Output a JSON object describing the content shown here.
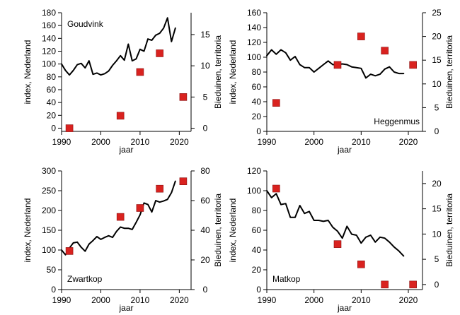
{
  "chart_data": [
    {
      "type": "line",
      "title": "Goudvink",
      "xlabel": "jaar",
      "ylabel": "index, Nederland",
      "y2label": "Bieduinen, territoria",
      "xlim": [
        1990,
        2023
      ],
      "ylim": [
        -5,
        180
      ],
      "y2lim": [
        -0.5,
        18.5
      ],
      "xticks": [
        1990,
        2000,
        2010,
        2020
      ],
      "yticks": [
        0,
        20,
        40,
        60,
        80,
        100,
        120,
        140,
        160,
        180
      ],
      "y2ticks": [
        0,
        5,
        10,
        15
      ],
      "label_position": "top-left",
      "series": [
        {
          "axis": "left",
          "style": "line",
          "color": "#000000",
          "x": [
            1990,
            1991,
            1992,
            1993,
            1994,
            1995,
            1996,
            1997,
            1998,
            1999,
            2000,
            2001,
            2002,
            2003,
            2004,
            2005,
            2006,
            2007,
            2008,
            2009,
            2010,
            2011,
            2012,
            2013,
            2014,
            2015,
            2016,
            2017,
            2018,
            2019
          ],
          "y": [
            100,
            90,
            83,
            90,
            99,
            101,
            94,
            105,
            84,
            86,
            83,
            85,
            89,
            98,
            105,
            113,
            106,
            131,
            105,
            108,
            123,
            120,
            139,
            137,
            145,
            148,
            156,
            172,
            135,
            156
          ]
        },
        {
          "axis": "right",
          "style": "marker",
          "color": "#d9221f",
          "x": [
            1992,
            2005,
            2010,
            2015,
            2021
          ],
          "y": [
            0,
            2,
            9,
            12,
            5
          ]
        }
      ]
    },
    {
      "type": "line",
      "title": "Heggenmus",
      "xlabel": "jaar",
      "ylabel": "index, Nederland",
      "y2label": "Bieduinen, territoria",
      "xlim": [
        1990,
        2023
      ],
      "ylim": [
        0,
        160
      ],
      "y2lim": [
        0,
        25
      ],
      "xticks": [
        1990,
        2000,
        2010,
        2020
      ],
      "yticks": [
        0,
        20,
        40,
        60,
        80,
        100,
        120,
        140,
        160
      ],
      "y2ticks": [
        0,
        5,
        10,
        15,
        20,
        25
      ],
      "label_position": "bottom-right",
      "series": [
        {
          "axis": "left",
          "style": "line",
          "color": "#000000",
          "x": [
            1990,
            1991,
            1992,
            1993,
            1994,
            1995,
            1996,
            1997,
            1998,
            1999,
            2000,
            2001,
            2002,
            2003,
            2004,
            2005,
            2006,
            2007,
            2008,
            2009,
            2010,
            2011,
            2012,
            2013,
            2014,
            2015,
            2016,
            2017,
            2018,
            2019
          ],
          "y": [
            102,
            110,
            104,
            110,
            106,
            96,
            101,
            90,
            86,
            86,
            80,
            85,
            90,
            95,
            90,
            90,
            91,
            90,
            87,
            86,
            85,
            72,
            77,
            75,
            77,
            84,
            87,
            80,
            78,
            78
          ]
        },
        {
          "axis": "right",
          "style": "marker",
          "color": "#d9221f",
          "x": [
            1992,
            2005,
            2010,
            2015,
            2021
          ],
          "y": [
            6,
            14,
            20,
            17,
            14
          ]
        }
      ]
    },
    {
      "type": "line",
      "title": "Zwartkop",
      "xlabel": "jaar",
      "ylabel": "index, Nederland",
      "y2label": "Bieduinen, territoria",
      "xlim": [
        1990,
        2023
      ],
      "ylim": [
        0,
        300
      ],
      "y2lim": [
        0,
        80
      ],
      "xticks": [
        1990,
        2000,
        2010,
        2020
      ],
      "yticks": [
        0,
        50,
        100,
        150,
        200,
        250,
        300
      ],
      "y2ticks": [
        0,
        20,
        40,
        60,
        80
      ],
      "label_position": "bottom-left",
      "series": [
        {
          "axis": "left",
          "style": "line",
          "color": "#000000",
          "x": [
            1990,
            1991,
            1992,
            1993,
            1994,
            1995,
            1996,
            1997,
            1998,
            1999,
            2000,
            2001,
            2002,
            2003,
            2004,
            2005,
            2006,
            2007,
            2008,
            2009,
            2010,
            2011,
            2012,
            2013,
            2014,
            2015,
            2016,
            2017,
            2018,
            2019
          ],
          "y": [
            100,
            88,
            105,
            118,
            120,
            107,
            97,
            115,
            124,
            134,
            127,
            132,
            136,
            132,
            147,
            158,
            155,
            155,
            152,
            170,
            189,
            219,
            215,
            196,
            225,
            221,
            224,
            228,
            245,
            274
          ]
        },
        {
          "axis": "right",
          "style": "marker",
          "color": "#d9221f",
          "x": [
            1992,
            2005,
            2010,
            2015,
            2021
          ],
          "y": [
            26,
            49,
            55,
            68,
            73
          ]
        }
      ]
    },
    {
      "type": "line",
      "title": "Matkop",
      "xlabel": "jaar",
      "ylabel": "index, Nederland",
      "y2label": "Bieduinen, territoria",
      "xlim": [
        1990,
        2023
      ],
      "ylim": [
        0,
        120
      ],
      "y2lim": [
        -1,
        22.5
      ],
      "xticks": [
        1990,
        2000,
        2010,
        2020
      ],
      "yticks": [
        0,
        20,
        40,
        60,
        80,
        100,
        120
      ],
      "y2ticks": [
        0,
        5,
        10,
        15,
        20
      ],
      "label_position": "bottom-left",
      "series": [
        {
          "axis": "left",
          "style": "line",
          "color": "#000000",
          "x": [
            1990,
            1991,
            1992,
            1993,
            1994,
            1995,
            1996,
            1997,
            1998,
            1999,
            2000,
            2001,
            2002,
            2003,
            2004,
            2005,
            2006,
            2007,
            2008,
            2009,
            2010,
            2011,
            2012,
            2013,
            2014,
            2015,
            2016,
            2017,
            2018,
            2019
          ],
          "y": [
            100,
            93,
            97,
            86,
            87,
            73,
            73,
            85,
            77,
            79,
            70,
            70,
            69,
            70,
            63,
            59,
            52,
            64,
            56,
            55,
            47,
            53,
            55,
            48,
            53,
            52,
            48,
            43,
            39,
            34
          ]
        },
        {
          "axis": "right",
          "style": "marker",
          "color": "#d9221f",
          "x": [
            1992,
            2005,
            2010,
            2015,
            2021
          ],
          "y": [
            19,
            8,
            4,
            0,
            0
          ]
        }
      ]
    }
  ]
}
